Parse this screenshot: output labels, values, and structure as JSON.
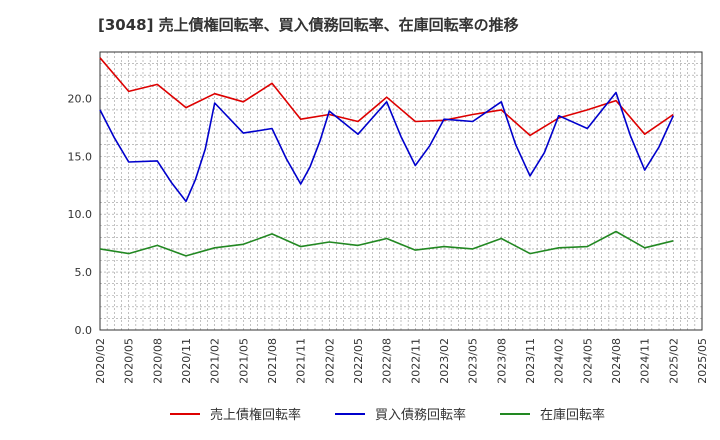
{
  "chart_data": {
    "type": "line",
    "title": "[3048]  売上債権回転率、買入債務回転率、在庫回転率の推移",
    "xlabel": "",
    "ylabel": "",
    "ylim": [
      0,
      24
    ],
    "yticks": [
      0.0,
      5.0,
      10.0,
      15.0,
      20.0
    ],
    "ytick_labels": [
      "0.0",
      "5.0",
      "10.0",
      "15.0",
      "20.0"
    ],
    "x": [
      "2020/02",
      "2020/05",
      "2020/08",
      "2020/11",
      "2021/02",
      "2021/05",
      "2021/08",
      "2021/11",
      "2022/02",
      "2022/05",
      "2022/08",
      "2022/11",
      "2023/02",
      "2023/05",
      "2023/08",
      "2023/11",
      "2024/02",
      "2024/05",
      "2024/08",
      "2024/11",
      "2025/02",
      "2025/05"
    ],
    "grid": true,
    "legend_position": "bottom",
    "series": [
      {
        "name": "売上債権回転率",
        "color": "#dd0000",
        "points": [
          [
            0,
            23.5
          ],
          [
            1,
            20.6
          ],
          [
            2,
            21.2
          ],
          [
            3,
            19.2
          ],
          [
            4,
            20.4
          ],
          [
            5,
            19.7
          ],
          [
            6,
            21.3
          ],
          [
            7,
            18.2
          ],
          [
            8,
            18.6
          ],
          [
            9,
            18.0
          ],
          [
            10,
            20.1
          ],
          [
            11,
            18.0
          ],
          [
            12,
            18.1
          ],
          [
            13,
            18.6
          ],
          [
            14,
            19.0
          ],
          [
            15,
            16.8
          ],
          [
            16,
            18.3
          ],
          [
            17,
            19.0
          ],
          [
            18,
            19.8
          ],
          [
            19,
            16.9
          ],
          [
            20,
            18.6
          ]
        ]
      },
      {
        "name": "買入債務回転率",
        "color": "#0000cc",
        "points": [
          [
            0,
            19.0
          ],
          [
            0.5,
            16.6
          ],
          [
            1,
            14.5
          ],
          [
            2,
            14.6
          ],
          [
            2.5,
            12.7
          ],
          [
            3,
            11.1
          ],
          [
            3.33,
            13.0
          ],
          [
            3.67,
            15.6
          ],
          [
            4,
            19.6
          ],
          [
            5,
            17.0
          ],
          [
            6,
            17.4
          ],
          [
            6.5,
            14.8
          ],
          [
            7,
            12.6
          ],
          [
            7.33,
            14.1
          ],
          [
            7.67,
            16.3
          ],
          [
            8,
            18.9
          ],
          [
            9,
            16.9
          ],
          [
            10,
            19.7
          ],
          [
            10.5,
            16.7
          ],
          [
            11,
            14.2
          ],
          [
            11.5,
            15.9
          ],
          [
            12,
            18.2
          ],
          [
            13,
            18.0
          ],
          [
            14,
            19.7
          ],
          [
            14.5,
            16.0
          ],
          [
            15,
            13.3
          ],
          [
            15.5,
            15.3
          ],
          [
            16,
            18.5
          ],
          [
            17,
            17.4
          ],
          [
            18,
            20.5
          ],
          [
            18.5,
            16.8
          ],
          [
            19,
            13.8
          ],
          [
            19.5,
            15.8
          ],
          [
            20,
            18.5
          ]
        ]
      },
      {
        "name": "在庫回転率",
        "color": "#228822",
        "points": [
          [
            0,
            7.0
          ],
          [
            1,
            6.6
          ],
          [
            2,
            7.3
          ],
          [
            3,
            6.4
          ],
          [
            4,
            7.1
          ],
          [
            5,
            7.4
          ],
          [
            6,
            8.3
          ],
          [
            7,
            7.2
          ],
          [
            8,
            7.6
          ],
          [
            9,
            7.3
          ],
          [
            10,
            7.9
          ],
          [
            11,
            6.9
          ],
          [
            12,
            7.2
          ],
          [
            13,
            7.0
          ],
          [
            14,
            7.9
          ],
          [
            15,
            6.6
          ],
          [
            16,
            7.1
          ],
          [
            17,
            7.2
          ],
          [
            18,
            8.5
          ],
          [
            19,
            7.1
          ],
          [
            20,
            7.7
          ]
        ]
      }
    ]
  }
}
